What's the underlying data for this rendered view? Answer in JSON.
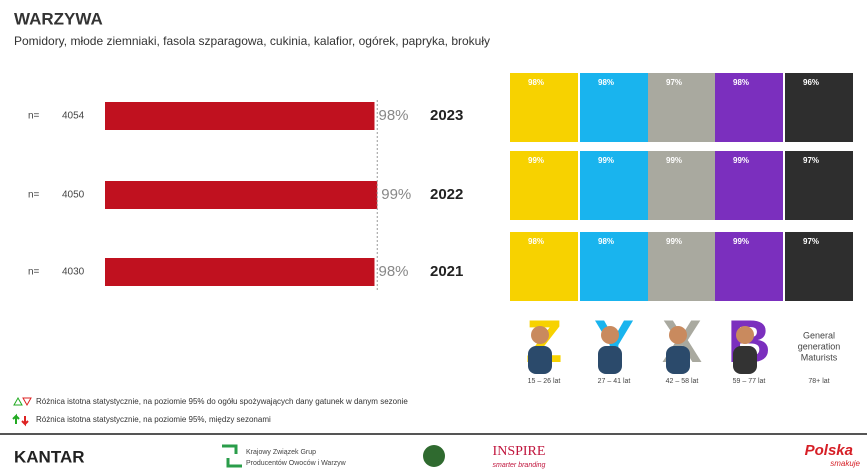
{
  "header": {
    "title": "WARZYWA",
    "subtitle": "Pomidory, młode ziemniaki, fasola szparagowa, cukinia, kalafior, ogórek, papryka, brokuły"
  },
  "chart_data": [
    {
      "type": "bar",
      "categories": [
        "2023",
        "2022",
        "2021"
      ],
      "n_label": "n=",
      "n": [
        4054,
        4050,
        4030
      ],
      "values": [
        98,
        99,
        98
      ],
      "value_labels": [
        "98%",
        "99%",
        "98%"
      ],
      "color": "#c0111f",
      "xlim": [
        0,
        100
      ]
    },
    {
      "type": "tile",
      "series": [
        {
          "letter": "Z",
          "label": "15 – 26 lat",
          "color": "#f7d200",
          "values": [
            98,
            99,
            98
          ],
          "value_labels": [
            "98%",
            "99%",
            "98%"
          ]
        },
        {
          "letter": "Y",
          "label": "27 – 41 lat",
          "color": "#19b4ee",
          "values": [
            98,
            99,
            98
          ],
          "value_labels": [
            "98%",
            "99%",
            "98%"
          ]
        },
        {
          "letter": "X",
          "label": "42 – 58 lat",
          "color": "#a9a99f",
          "values": [
            97,
            99,
            99
          ],
          "value_labels": [
            "97%",
            "99%",
            "99%"
          ]
        },
        {
          "letter": "B",
          "label": "59 – 77 lat",
          "color": "#7b2fbe",
          "values": [
            98,
            99,
            99
          ],
          "value_labels": [
            "98%",
            "99%",
            "99%"
          ]
        },
        {
          "name_lines": [
            "General",
            "generation",
            "Maturists"
          ],
          "label": "78+ lat",
          "color": "#2e2e2e",
          "values": [
            96,
            97,
            97
          ],
          "value_labels": [
            "96%",
            "97%",
            "97%"
          ]
        }
      ]
    }
  ],
  "footer": {
    "legend": [
      "Różnica istotna statystycznie, na poziomie 95% do ogółu spożywających dany gatunek w danym sezonie",
      "Różnica istotna statystycznie, na poziomie 95%, między sezonami"
    ],
    "kantar": "KANTAR",
    "kzgp": [
      "Krajowy Związek Grup",
      "Producentów Owoców i Warzyw"
    ],
    "inspire": "INSPIRE",
    "inspire_sub": "smarter branding",
    "polska": "Polska",
    "smakuje": "smakuje"
  }
}
